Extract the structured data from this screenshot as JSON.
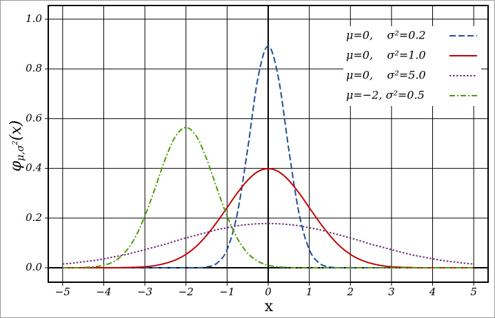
{
  "chart_data": {
    "type": "line",
    "xlabel": "x",
    "ylabel": {
      "symbol": "φ",
      "subscript": "μ,σ",
      "superscript": "2",
      "argument": "(x)"
    },
    "x": [
      -5,
      -4.75,
      -4.5,
      -4.25,
      -4,
      -3.75,
      -3.5,
      -3.25,
      -3,
      -2.75,
      -2.5,
      -2.25,
      -2,
      -1.75,
      -1.5,
      -1.25,
      -1,
      -0.75,
      -0.5,
      -0.25,
      0,
      0.25,
      0.5,
      0.75,
      1,
      1.25,
      1.5,
      1.75,
      2,
      2.25,
      2.5,
      2.75,
      3,
      3.25,
      3.5,
      3.75,
      4,
      4.25,
      4.5,
      4.75,
      5
    ],
    "series": [
      {
        "name": "μ=0,    σ²=0.2",
        "color": "#1f4e9c",
        "dash": "dashed",
        "values": [
          0,
          0,
          0,
          0,
          0,
          0,
          0,
          0,
          0,
          0,
          0,
          0,
          0,
          0,
          0.003,
          0.018,
          0.073,
          0.219,
          0.477,
          0.763,
          0.892,
          0.763,
          0.477,
          0.219,
          0.073,
          0.018,
          0.003,
          0,
          0,
          0,
          0,
          0,
          0,
          0,
          0,
          0,
          0,
          0,
          0,
          0,
          0
        ]
      },
      {
        "name": "μ=0,    σ²=1.0",
        "color": "#c00000",
        "dash": "solid",
        "values": [
          0,
          0,
          0,
          0,
          0,
          0,
          0.001,
          0.002,
          0.004,
          0.009,
          0.018,
          0.032,
          0.054,
          0.086,
          0.13,
          0.183,
          0.242,
          0.301,
          0.352,
          0.387,
          0.399,
          0.387,
          0.352,
          0.301,
          0.242,
          0.183,
          0.13,
          0.086,
          0.054,
          0.032,
          0.018,
          0.009,
          0.004,
          0.002,
          0.001,
          0,
          0,
          0,
          0,
          0,
          0
        ]
      },
      {
        "name": "μ=0,    σ²=5.0",
        "color": "#6a2c7a",
        "dash": "dotted",
        "values": [
          0.015,
          0.019,
          0.024,
          0.029,
          0.036,
          0.044,
          0.052,
          0.062,
          0.073,
          0.084,
          0.095,
          0.108,
          0.12,
          0.131,
          0.142,
          0.153,
          0.161,
          0.169,
          0.174,
          0.177,
          0.178,
          0.177,
          0.174,
          0.169,
          0.161,
          0.153,
          0.142,
          0.131,
          0.12,
          0.108,
          0.095,
          0.084,
          0.073,
          0.062,
          0.052,
          0.044,
          0.036,
          0.029,
          0.024,
          0.019,
          0.015
        ]
      },
      {
        "name": "μ=−2, σ²=0.5",
        "color": "#4e9a06",
        "dash": "dashdot",
        "values": [
          0,
          0,
          0.001,
          0.004,
          0.01,
          0.026,
          0.059,
          0.118,
          0.208,
          0.321,
          0.439,
          0.53,
          0.564,
          0.53,
          0.439,
          0.321,
          0.208,
          0.118,
          0.059,
          0.026,
          0.01,
          0.004,
          0.001,
          0,
          0,
          0,
          0,
          0,
          0,
          0,
          0,
          0,
          0,
          0,
          0,
          0,
          0,
          0,
          0,
          0,
          0
        ]
      }
    ],
    "xlim": [
      -5.35,
      5.35
    ],
    "ylim": [
      -0.058,
      1.055
    ],
    "xticks": [
      {
        "value": -5,
        "label": "−5"
      },
      {
        "value": -4,
        "label": "−4"
      },
      {
        "value": -3,
        "label": "−3"
      },
      {
        "value": -2,
        "label": "−2"
      },
      {
        "value": -1,
        "label": "−1"
      },
      0,
      1,
      2,
      3,
      4,
      5
    ],
    "yticks": [
      {
        "value": 0,
        "label": "0.0"
      },
      0.2,
      0.4,
      0.6,
      0.8,
      {
        "value": 1,
        "label": "1.0"
      }
    ],
    "grid": true,
    "legend": "upper-right"
  }
}
